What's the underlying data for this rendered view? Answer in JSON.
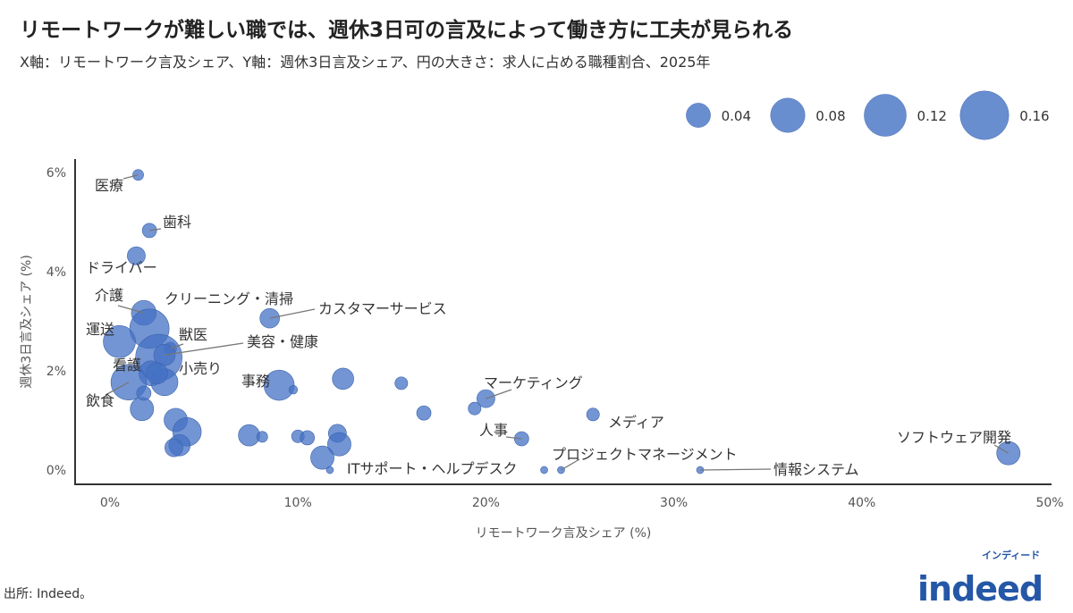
{
  "title": "リモートワークが難しい職では、週休3日可の言及によって働き方に工夫が見られる",
  "subtitle": "X軸：リモートワーク言及シェア、Y軸：週休3日言及シェア、円の大きさ：求人に占める職種割合、2025年",
  "source": "出所: Indeed。",
  "logo": {
    "text": "indeed",
    "kana": "インディード",
    "color": "#2557a7"
  },
  "chart_data": {
    "type": "scatter",
    "subtype": "bubble",
    "xlabel": "リモートワーク言及シェア (%)",
    "ylabel": "週休3日言及シェア (%)",
    "xlim": [
      -2,
      50
    ],
    "ylim": [
      -0.3,
      6.3
    ],
    "xticks": [
      0,
      10,
      20,
      30,
      40,
      50
    ],
    "xtick_labels": [
      "0%",
      "10%",
      "20%",
      "30%",
      "40%",
      "50%"
    ],
    "yticks": [
      0,
      2,
      4,
      6
    ],
    "ytick_labels": [
      "0%",
      "2%",
      "4%",
      "6%"
    ],
    "grid": false,
    "legend": {
      "placement": "top-right",
      "sizes": [
        0.04,
        0.08,
        0.12,
        0.16
      ],
      "labels": [
        "0.04",
        "0.08",
        "0.12",
        "0.16"
      ]
    },
    "color": "#4472c4",
    "points": [
      {
        "label": "医療",
        "x": 1.5,
        "y": 5.95,
        "size": 0.008
      },
      {
        "label": "歯科",
        "x": 2.1,
        "y": 4.83,
        "size": 0.014
      },
      {
        "label": "ドライバー",
        "x": 1.4,
        "y": 4.32,
        "size": 0.022
      },
      {
        "label": "介護",
        "x": 1.8,
        "y": 3.17,
        "size": 0.042
      },
      {
        "label": "クリーニング・清掃",
        "x": 2.1,
        "y": 2.85,
        "size": 0.105
      },
      {
        "label": "運送",
        "x": 0.5,
        "y": 2.59,
        "size": 0.07
      },
      {
        "label": "獣医",
        "x": 3.2,
        "y": 2.45,
        "size": 0.011
      },
      {
        "label": "小売り",
        "x": 2.6,
        "y": 2.27,
        "size": 0.146
      },
      {
        "label": "美容・健康",
        "x": 2.9,
        "y": 2.32,
        "size": 0.031
      },
      {
        "label": "看護",
        "x": 2.2,
        "y": 1.95,
        "size": 0.042
      },
      {
        "label": "飲食",
        "x": 1.0,
        "y": 1.77,
        "size": 0.086
      },
      {
        "label": "事務",
        "x": 9.0,
        "y": 1.71,
        "size": 0.062
      },
      {
        "label": "カスタマーサービス",
        "x": 8.5,
        "y": 3.06,
        "size": 0.026
      },
      {
        "label": "マーケティング",
        "x": 20.0,
        "y": 1.44,
        "size": 0.022
      },
      {
        "label": "人事",
        "x": 21.9,
        "y": 0.63,
        "size": 0.014
      },
      {
        "label": "メディア",
        "x": 25.7,
        "y": 1.12,
        "size": 0.011
      },
      {
        "label": "ソフトウェア開発",
        "x": 47.8,
        "y": 0.34,
        "size": 0.037
      },
      {
        "label": "情報システム",
        "x": 31.4,
        "y": 0.0,
        "size": 0.0035
      },
      {
        "label": "プロジェクトマネージメント",
        "x": 24.0,
        "y": 0.0,
        "size": 0.0035
      },
      {
        "label": "ITサポート・ヘルプデスク",
        "x": 11.7,
        "y": 0.0,
        "size": 0.0035
      },
      {
        "label": "",
        "x": 23.1,
        "y": 0.0,
        "size": 0.0035
      },
      {
        "label": "",
        "x": 9.75,
        "y": 1.62,
        "size": 0.005
      },
      {
        "label": "",
        "x": 12.4,
        "y": 1.84,
        "size": 0.031
      },
      {
        "label": "",
        "x": 15.5,
        "y": 1.75,
        "size": 0.011
      },
      {
        "label": "",
        "x": 16.7,
        "y": 1.15,
        "size": 0.014
      },
      {
        "label": "",
        "x": 19.4,
        "y": 1.24,
        "size": 0.011
      },
      {
        "label": "",
        "x": 7.4,
        "y": 0.7,
        "size": 0.031
      },
      {
        "label": "",
        "x": 8.1,
        "y": 0.67,
        "size": 0.008
      },
      {
        "label": "",
        "x": 10.0,
        "y": 0.68,
        "size": 0.011
      },
      {
        "label": "",
        "x": 10.5,
        "y": 0.65,
        "size": 0.014
      },
      {
        "label": "",
        "x": 12.1,
        "y": 0.74,
        "size": 0.022
      },
      {
        "label": "",
        "x": 12.2,
        "y": 0.52,
        "size": 0.037
      },
      {
        "label": "",
        "x": 11.3,
        "y": 0.25,
        "size": 0.037
      },
      {
        "label": "",
        "x": 3.5,
        "y": 1.01,
        "size": 0.037
      },
      {
        "label": "",
        "x": 4.1,
        "y": 0.77,
        "size": 0.055
      },
      {
        "label": "",
        "x": 3.7,
        "y": 0.5,
        "size": 0.031
      },
      {
        "label": "",
        "x": 3.4,
        "y": 0.45,
        "size": 0.022
      },
      {
        "label": "",
        "x": 1.7,
        "y": 1.23,
        "size": 0.037
      },
      {
        "label": "",
        "x": 1.8,
        "y": 1.55,
        "size": 0.014
      },
      {
        "label": "",
        "x": 2.9,
        "y": 1.77,
        "size": 0.049
      },
      {
        "label": "",
        "x": 2.5,
        "y": 1.95,
        "size": 0.031
      }
    ]
  }
}
